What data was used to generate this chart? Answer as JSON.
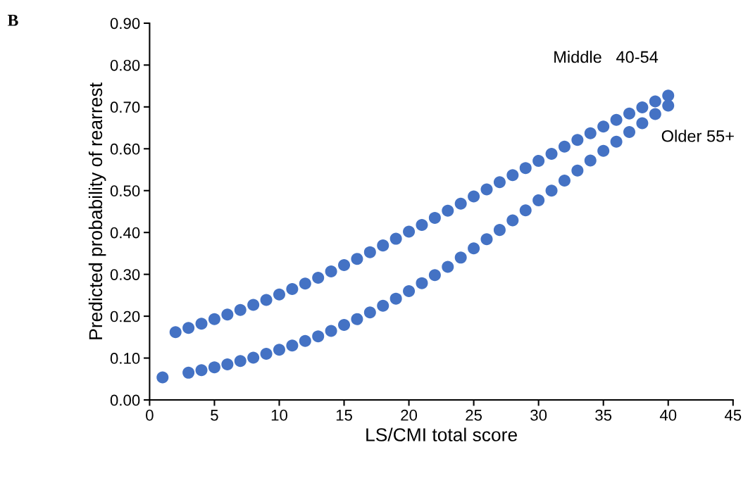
{
  "chart_data": {
    "type": "scatter",
    "xlabel": "LS/CMI total score",
    "ylabel": "Predicted probability of rearrest",
    "annotations": [
      "B"
    ],
    "xlim": [
      0,
      45
    ],
    "xticks": [
      0,
      5,
      10,
      15,
      20,
      25,
      30,
      35,
      40,
      45
    ],
    "ylim": [
      0,
      0.9
    ],
    "yticks": [
      {
        "value": 0,
        "label": "0.00"
      },
      {
        "value": 0.1,
        "label": "0.10"
      },
      {
        "value": 0.2,
        "label": "0.20"
      },
      {
        "value": 0.3,
        "label": "0.30"
      },
      {
        "value": 0.4,
        "label": "0.40"
      },
      {
        "value": 0.5,
        "label": "0.50"
      },
      {
        "value": 0.6,
        "label": "0.60"
      },
      {
        "value": 0.7,
        "label": "0.70"
      },
      {
        "value": 0.8,
        "label": "0.80"
      },
      {
        "value": 0.9,
        "label": "0.90"
      }
    ],
    "grid": false,
    "legend": false,
    "marker": "circle",
    "series": [
      {
        "name": "Middle   40-54",
        "color": "#4472c4",
        "x": [
          2,
          3,
          4,
          5,
          6,
          7,
          8,
          9,
          10,
          11,
          12,
          13,
          14,
          15,
          16,
          17,
          18,
          19,
          20,
          21,
          22,
          23,
          24,
          25,
          26,
          27,
          28,
          29,
          30,
          31,
          32,
          33,
          34,
          35,
          36,
          37,
          38,
          39,
          40
        ],
        "values": [
          0.162,
          0.172,
          0.182,
          0.193,
          0.204,
          0.215,
          0.227,
          0.239,
          0.252,
          0.265,
          0.278,
          0.292,
          0.307,
          0.322,
          0.337,
          0.353,
          0.369,
          0.385,
          0.402,
          0.418,
          0.435,
          0.452,
          0.469,
          0.486,
          0.503,
          0.52,
          0.537,
          0.554,
          0.571,
          0.588,
          0.605,
          0.621,
          0.637,
          0.653,
          0.669,
          0.684,
          0.699,
          0.713,
          0.727
        ]
      },
      {
        "name": "Older 55+",
        "color": "#4472c4",
        "x": [
          1,
          3,
          4,
          5,
          6,
          7,
          8,
          9,
          10,
          11,
          12,
          13,
          14,
          15,
          16,
          17,
          18,
          19,
          20,
          21,
          22,
          23,
          24,
          25,
          26,
          27,
          28,
          29,
          30,
          31,
          32,
          33,
          34,
          35,
          36,
          37,
          38,
          39,
          40
        ],
        "values": [
          0.054,
          0.065,
          0.071,
          0.078,
          0.085,
          0.093,
          0.101,
          0.11,
          0.12,
          0.13,
          0.141,
          0.152,
          0.165,
          0.179,
          0.193,
          0.209,
          0.225,
          0.242,
          0.26,
          0.279,
          0.298,
          0.318,
          0.34,
          0.362,
          0.384,
          0.406,
          0.429,
          0.453,
          0.477,
          0.5,
          0.524,
          0.548,
          0.572,
          0.595,
          0.617,
          0.64,
          0.661,
          0.683,
          0.703
        ]
      }
    ]
  }
}
